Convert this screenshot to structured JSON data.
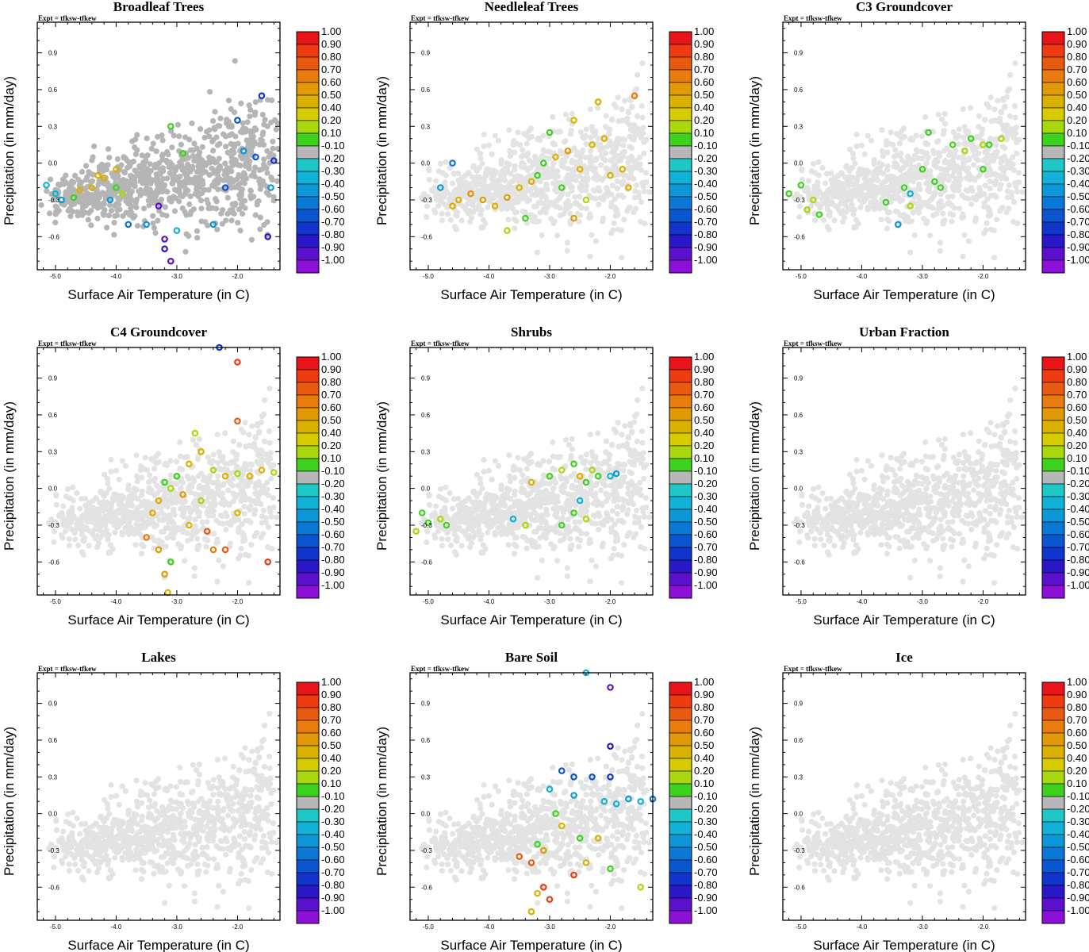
{
  "figure": {
    "expt_label": "Expt = tfksw-tfkew",
    "xlabel": "Surface Air Temperature (in C)",
    "ylabel": "Precipitation (in mm/day)"
  },
  "colorbar": {
    "labels": [
      "1.00",
      "0.90",
      "0.80",
      "0.70",
      "0.60",
      "0.50",
      "0.40",
      "0.20",
      "0.10",
      "-0.10",
      "-0.20",
      "-0.30",
      "-0.40",
      "-0.50",
      "-0.60",
      "-0.70",
      "-0.80",
      "-0.90",
      "-1.00"
    ],
    "colors": [
      "#e8141a",
      "#f03a12",
      "#e85a10",
      "#e97c0c",
      "#e19a06",
      "#dbb100",
      "#d6cc00",
      "#aad80f",
      "#3cd21e",
      "#b7b7b7",
      "#1ec8c8",
      "#12b2d8",
      "#0c98d8",
      "#0a78d6",
      "#0a56d0",
      "#1034cc",
      "#2a18c8",
      "#5a10cc",
      "#8c10d8"
    ]
  },
  "chart_data": [
    {
      "type": "scatter",
      "title": "Broadleaf Trees",
      "xlabel": "Surface Air Temperature (in C)",
      "ylabel": "Precipitation (in mm/day)",
      "xlim": [
        -5.3,
        -1.3
      ],
      "ylim": [
        -0.87,
        1.15
      ],
      "xticks": [
        "-5.0",
        "-4.0",
        "-3.0",
        "-2.0"
      ],
      "yticks": [
        "0.9",
        "0.6",
        "0.3",
        "0.0",
        "-0.3",
        "-0.6"
      ],
      "background_color": "#b5b5b5",
      "background_n": 900,
      "points": [
        [
          -4.6,
          -0.22,
          0.4
        ],
        [
          -4.4,
          -0.2,
          0.5
        ],
        [
          -4.2,
          -0.12,
          0.4
        ],
        [
          -4.0,
          -0.05,
          0.5
        ],
        [
          -4.3,
          -0.1,
          0.4
        ],
        [
          -4.7,
          -0.28,
          0.1
        ],
        [
          -5.0,
          -0.25,
          -0.2
        ],
        [
          -5.15,
          -0.18,
          -0.2
        ],
        [
          -4.9,
          -0.3,
          -0.3
        ],
        [
          -4.1,
          -0.3,
          -0.3
        ],
        [
          -3.8,
          -0.5,
          -0.4
        ],
        [
          -3.5,
          -0.5,
          -0.3
        ],
        [
          -3.2,
          -0.62,
          -0.9
        ],
        [
          -3.0,
          -0.55,
          -0.2
        ],
        [
          -2.4,
          -0.5,
          -0.3
        ],
        [
          -2.2,
          -0.2,
          -0.5
        ],
        [
          -2.0,
          0.35,
          -0.5
        ],
        [
          -1.9,
          0.1,
          -0.3
        ],
        [
          -1.7,
          0.05,
          -0.6
        ],
        [
          -1.6,
          0.55,
          -0.7
        ],
        [
          -1.5,
          -0.6,
          -0.8
        ],
        [
          -1.4,
          0.02,
          -0.7
        ],
        [
          -1.45,
          -0.2,
          -0.3
        ],
        [
          -3.1,
          0.3,
          0.1
        ],
        [
          -2.9,
          0.08,
          0.1
        ],
        [
          -3.3,
          -0.35,
          -0.9
        ],
        [
          -3.1,
          -0.8,
          -0.9
        ],
        [
          -3.2,
          -0.7,
          -0.8
        ],
        [
          -4.0,
          -0.2,
          0.1
        ],
        [
          -3.9,
          -0.25,
          0.2
        ]
      ]
    },
    {
      "type": "scatter",
      "title": "Needleleaf Trees",
      "xlabel": "Surface Air Temperature (in C)",
      "ylabel": "Precipitation (in mm/day)",
      "xlim": [
        -5.3,
        -1.3
      ],
      "ylim": [
        -0.87,
        1.15
      ],
      "xticks": [
        "-5.0",
        "-4.0",
        "-3.0",
        "-2.0"
      ],
      "yticks": [
        "0.9",
        "0.6",
        "0.3",
        "0.0",
        "-0.3",
        "-0.6"
      ],
      "background_color": "#e3e3e3",
      "background_n": 900,
      "points": [
        [
          -4.3,
          -0.25,
          0.6
        ],
        [
          -4.1,
          -0.3,
          0.6
        ],
        [
          -3.9,
          -0.35,
          0.5
        ],
        [
          -3.7,
          -0.28,
          0.6
        ],
        [
          -3.5,
          -0.2,
          0.5
        ],
        [
          -3.3,
          -0.15,
          0.4
        ],
        [
          -3.1,
          0.0,
          0.1
        ],
        [
          -2.9,
          0.05,
          0.5
        ],
        [
          -2.7,
          0.1,
          0.6
        ],
        [
          -2.5,
          -0.05,
          0.5
        ],
        [
          -2.3,
          0.15,
          0.4
        ],
        [
          -2.1,
          0.2,
          0.5
        ],
        [
          -2.0,
          -0.1,
          0.5
        ],
        [
          -1.8,
          -0.05,
          0.4
        ],
        [
          -1.6,
          0.55,
          0.7
        ],
        [
          -2.2,
          0.5,
          0.4
        ],
        [
          -2.6,
          -0.45,
          0.6
        ],
        [
          -2.8,
          -0.2,
          0.1
        ],
        [
          -3.4,
          -0.45,
          0.1
        ],
        [
          -3.7,
          -0.55,
          0.2
        ],
        [
          -4.5,
          -0.3,
          0.4
        ],
        [
          -4.6,
          -0.35,
          0.5
        ],
        [
          -2.6,
          0.35,
          0.4
        ],
        [
          -3.0,
          0.25,
          0.1
        ],
        [
          -2.4,
          -0.3,
          0.2
        ],
        [
          -4.8,
          -0.2,
          -0.3
        ],
        [
          -4.6,
          0.0,
          -0.4
        ],
        [
          -2.2,
          0.5,
          0.4
        ],
        [
          -1.7,
          -0.2,
          0.4
        ],
        [
          -3.2,
          -0.1,
          0.1
        ]
      ]
    },
    {
      "type": "scatter",
      "title": "C3 Groundcover",
      "xlabel": "Surface Air Temperature (in C)",
      "ylabel": "Precipitation (in mm/day)",
      "xlim": [
        -5.3,
        -1.3
      ],
      "ylim": [
        -0.87,
        1.15
      ],
      "xticks": [
        "-5.0",
        "-4.0",
        "-3.0",
        "-2.0"
      ],
      "yticks": [
        "0.9",
        "0.6",
        "0.3",
        "0.0",
        "-0.3",
        "-0.6"
      ],
      "background_color": "#e3e3e3",
      "background_n": 900,
      "points": [
        [
          -5.2,
          -0.25,
          0.1
        ],
        [
          -5.0,
          -0.18,
          0.1
        ],
        [
          -4.8,
          -0.3,
          0.2
        ],
        [
          -4.7,
          -0.42,
          0.1
        ],
        [
          -4.9,
          -0.38,
          0.2
        ],
        [
          -3.3,
          -0.2,
          0.1
        ],
        [
          -3.2,
          -0.35,
          0.2
        ],
        [
          -3.0,
          -0.05,
          0.1
        ],
        [
          -2.8,
          -0.15,
          0.1
        ],
        [
          -2.5,
          0.15,
          0.1
        ],
        [
          -2.3,
          0.1,
          0.2
        ],
        [
          -2.2,
          0.2,
          0.1
        ],
        [
          -2.0,
          0.15,
          0.2
        ],
        [
          -1.9,
          0.15,
          0.1
        ],
        [
          -1.7,
          0.2,
          0.2
        ],
        [
          -2.0,
          -0.05,
          0.1
        ],
        [
          -2.9,
          0.25,
          0.1
        ],
        [
          -2.7,
          -0.2,
          0.1
        ],
        [
          -3.4,
          -0.5,
          -0.3
        ],
        [
          -3.2,
          -0.25,
          -0.2
        ],
        [
          -3.6,
          -0.32,
          0.1
        ]
      ]
    },
    {
      "type": "scatter",
      "title": "C4 Groundcover",
      "xlabel": "Surface Air Temperature (in C)",
      "ylabel": "Precipitation (in mm/day)",
      "xlim": [
        -5.3,
        -1.3
      ],
      "ylim": [
        -0.87,
        1.15
      ],
      "xticks": [
        "-5.0",
        "-4.0",
        "-3.0",
        "-2.0"
      ],
      "yticks": [
        "0.9",
        "0.6",
        "0.3",
        "0.0",
        "-0.3",
        "-0.6"
      ],
      "background_color": "#e3e3e3",
      "background_n": 900,
      "points": [
        [
          -3.2,
          0.05,
          0.1
        ],
        [
          -3.1,
          0.0,
          0.2
        ],
        [
          -3.3,
          -0.1,
          0.4
        ],
        [
          -3.0,
          0.1,
          0.1
        ],
        [
          -2.8,
          0.2,
          0.5
        ],
        [
          -2.6,
          0.3,
          0.4
        ],
        [
          -2.4,
          0.15,
          0.2
        ],
        [
          -2.2,
          0.1,
          0.4
        ],
        [
          -2.0,
          0.12,
          0.2
        ],
        [
          -1.8,
          0.1,
          0.4
        ],
        [
          -1.6,
          0.15,
          0.5
        ],
        [
          -1.4,
          0.13,
          0.2
        ],
        [
          -2.0,
          1.03,
          0.9
        ],
        [
          -2.0,
          0.55,
          0.8
        ],
        [
          -3.5,
          -0.4,
          0.7
        ],
        [
          -3.3,
          -0.5,
          0.6
        ],
        [
          -3.2,
          -0.7,
          0.6
        ],
        [
          -3.1,
          -0.6,
          0.1
        ],
        [
          -2.8,
          -0.3,
          0.5
        ],
        [
          -2.5,
          -0.35,
          0.8
        ],
        [
          -2.4,
          -0.5,
          0.7
        ],
        [
          -2.2,
          -0.5,
          0.8
        ],
        [
          -1.5,
          -0.6,
          0.9
        ],
        [
          -3.4,
          -0.2,
          0.5
        ],
        [
          -2.9,
          -0.05,
          0.6
        ],
        [
          -2.0,
          -0.2,
          0.5
        ],
        [
          -2.6,
          -0.1,
          0.2
        ],
        [
          -2.3,
          1.15,
          -0.7
        ],
        [
          -3.15,
          -0.85,
          0.4
        ],
        [
          -2.7,
          0.45,
          0.2
        ]
      ]
    },
    {
      "type": "scatter",
      "title": "Shrubs",
      "xlabel": "Surface Air Temperature (in C)",
      "ylabel": "Precipitation (in mm/day)",
      "xlim": [
        -5.3,
        -1.3
      ],
      "ylim": [
        -0.87,
        1.15
      ],
      "xticks": [
        "-5.0",
        "-4.0",
        "-3.0",
        "-2.0"
      ],
      "yticks": [
        "0.9",
        "0.6",
        "0.3",
        "0.0",
        "-0.3",
        "-0.6"
      ],
      "background_color": "#e3e3e3",
      "background_n": 900,
      "points": [
        [
          -5.1,
          -0.2,
          0.1
        ],
        [
          -5.0,
          -0.28,
          0.1
        ],
        [
          -4.8,
          -0.25,
          0.2
        ],
        [
          -4.7,
          -0.3,
          0.1
        ],
        [
          -5.2,
          -0.35,
          0.2
        ],
        [
          -3.6,
          -0.25,
          -0.2
        ],
        [
          -3.0,
          0.1,
          0.1
        ],
        [
          -2.8,
          0.15,
          0.2
        ],
        [
          -2.6,
          0.2,
          0.1
        ],
        [
          -2.5,
          0.1,
          0.5
        ],
        [
          -2.4,
          0.05,
          0.1
        ],
        [
          -2.3,
          0.15,
          0.2
        ],
        [
          -2.6,
          -0.2,
          0.1
        ],
        [
          -2.4,
          -0.25,
          0.2
        ],
        [
          -2.8,
          -0.3,
          0.1
        ],
        [
          -2.2,
          0.1,
          0.1
        ],
        [
          -2.0,
          0.1,
          -0.2
        ],
        [
          -2.5,
          -0.1,
          -0.2
        ],
        [
          -3.3,
          0.05,
          0.5
        ],
        [
          -3.4,
          -0.3,
          0.2
        ],
        [
          -1.9,
          0.12,
          -0.3
        ]
      ]
    },
    {
      "type": "scatter",
      "title": "Urban Fraction",
      "xlabel": "Surface Air Temperature (in C)",
      "ylabel": "Precipitation (in mm/day)",
      "xlim": [
        -5.3,
        -1.3
      ],
      "ylim": [
        -0.87,
        1.15
      ],
      "xticks": [
        "-5.0",
        "-4.0",
        "-3.0",
        "-2.0"
      ],
      "yticks": [
        "0.9",
        "0.6",
        "0.3",
        "0.0",
        "-0.3",
        "-0.6"
      ],
      "background_color": "#e3e3e3",
      "background_n": 900,
      "points": []
    },
    {
      "type": "scatter",
      "title": "Lakes",
      "xlabel": "Surface Air Temperature (in C)",
      "ylabel": "Precipitation (in mm/day)",
      "xlim": [
        -5.3,
        -1.3
      ],
      "ylim": [
        -0.87,
        1.15
      ],
      "xticks": [
        "-5.0",
        "-4.0",
        "-3.0",
        "-2.0"
      ],
      "yticks": [
        "0.9",
        "0.6",
        "0.3",
        "0.0",
        "-0.3",
        "-0.6"
      ],
      "background_color": "#e3e3e3",
      "background_n": 900,
      "points": []
    },
    {
      "type": "scatter",
      "title": "Bare Soil",
      "xlabel": "Surface Air Temperature (in C)",
      "ylabel": "Precipitation (in mm/day)",
      "xlim": [
        -5.3,
        -1.3
      ],
      "ylim": [
        -0.87,
        1.15
      ],
      "xticks": [
        "-5.0",
        "-4.0",
        "-3.0",
        "-2.0"
      ],
      "yticks": [
        "0.9",
        "0.6",
        "0.3",
        "0.0",
        "-0.3",
        "-0.6"
      ],
      "background_color": "#e3e3e3",
      "background_n": 900,
      "points": [
        [
          -2.4,
          1.15,
          -0.2
        ],
        [
          -2.0,
          1.03,
          -0.9
        ],
        [
          -2.0,
          0.55,
          -0.8
        ],
        [
          -2.3,
          0.3,
          -0.6
        ],
        [
          -2.6,
          0.3,
          -0.5
        ],
        [
          -2.8,
          0.35,
          -0.6
        ],
        [
          -2.0,
          0.3,
          -0.7
        ],
        [
          -2.1,
          0.1,
          -0.2
        ],
        [
          -1.9,
          0.08,
          -0.2
        ],
        [
          -1.7,
          0.12,
          -0.3
        ],
        [
          -1.5,
          0.1,
          -0.2
        ],
        [
          -1.3,
          0.12,
          -0.4
        ],
        [
          -2.6,
          0.15,
          -0.3
        ],
        [
          -3.0,
          0.2,
          -0.2
        ],
        [
          -2.9,
          0.0,
          0.1
        ],
        [
          -3.2,
          -0.25,
          0.1
        ],
        [
          -3.3,
          -0.4,
          0.8
        ],
        [
          -3.1,
          -0.6,
          0.9
        ],
        [
          -3.2,
          -0.65,
          0.5
        ],
        [
          -3.0,
          -0.7,
          0.9
        ],
        [
          -2.6,
          -0.5,
          0.9
        ],
        [
          -2.4,
          -0.4,
          0.5
        ],
        [
          -2.5,
          -0.2,
          0.1
        ],
        [
          -2.0,
          -0.45,
          0.1
        ],
        [
          -1.5,
          -0.6,
          0.2
        ],
        [
          -3.5,
          -0.35,
          0.8
        ],
        [
          -3.1,
          -0.3,
          0.6
        ],
        [
          -2.8,
          -0.1,
          0.5
        ],
        [
          -2.2,
          -0.2,
          0.4
        ],
        [
          -3.3,
          -0.8,
          0.4
        ]
      ]
    },
    {
      "type": "scatter",
      "title": "Ice",
      "xlabel": "Surface Air Temperature (in C)",
      "ylabel": "Precipitation (in mm/day)",
      "xlim": [
        -5.3,
        -1.3
      ],
      "ylim": [
        -0.87,
        1.15
      ],
      "xticks": [
        "-5.0",
        "-4.0",
        "-3.0",
        "-2.0"
      ],
      "yticks": [
        "0.9",
        "0.6",
        "0.3",
        "0.0",
        "-0.3",
        "-0.6"
      ],
      "background_color": "#e3e3e3",
      "background_n": 900,
      "points": []
    }
  ]
}
